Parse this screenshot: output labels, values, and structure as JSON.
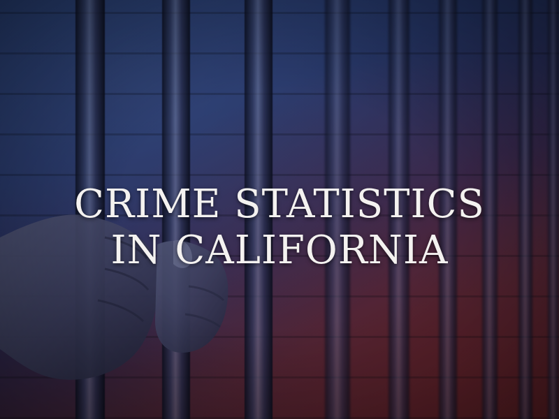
{
  "banner": {
    "title_line1": "CRIME STATISTICS",
    "title_line2": "IN CALIFORNIA"
  },
  "colors": {
    "tint_top": "#2a4a8c",
    "tint_bottom": "#6a2020",
    "text": "#f4f2f0"
  }
}
